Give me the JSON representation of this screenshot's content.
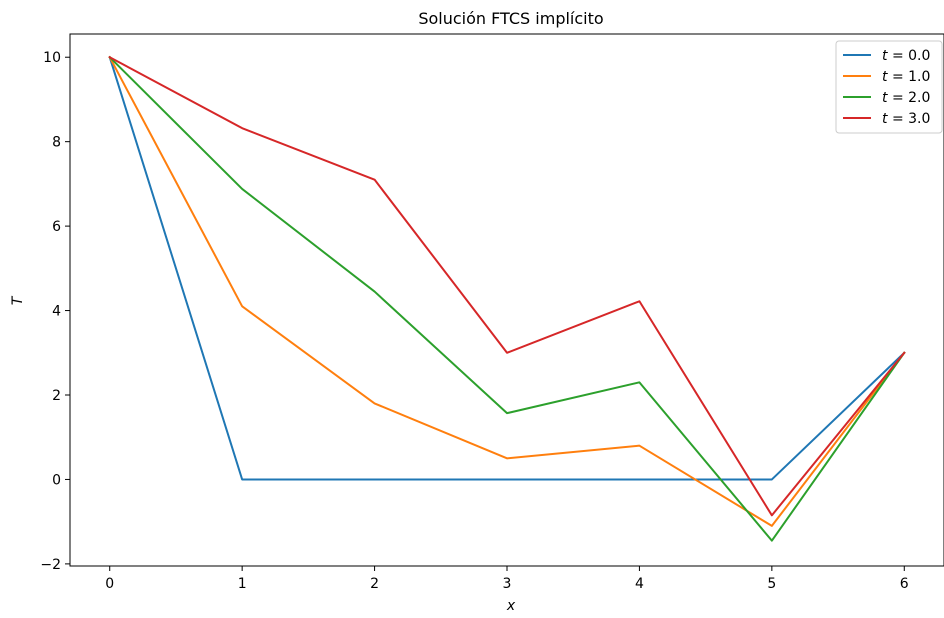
{
  "chart_data": {
    "type": "line",
    "title": "Solución FTCS implícito",
    "xlabel": "x",
    "ylabel": "T",
    "xlim": [
      -0.3,
      6.3
    ],
    "ylim": [
      -2.05,
      10.55
    ],
    "xticks": [
      0,
      1,
      2,
      3,
      4,
      5,
      6
    ],
    "yticks": [
      -2,
      0,
      2,
      4,
      6,
      8,
      10
    ],
    "xtick_labels": [
      "0",
      "1",
      "2",
      "3",
      "4",
      "5",
      "6"
    ],
    "ytick_labels": [
      "−2",
      "0",
      "2",
      "4",
      "6",
      "8",
      "10"
    ],
    "grid": false,
    "legend_position": "top-right",
    "x": [
      0,
      1,
      2,
      3,
      4,
      5,
      6
    ],
    "series": [
      {
        "name": "t = 0.0",
        "label_var": "t",
        "label_val": "= 0.0",
        "color": "#1f77b4",
        "values": [
          10,
          0,
          0,
          0,
          0,
          0,
          3
        ]
      },
      {
        "name": "t = 1.0",
        "label_var": "t",
        "label_val": "= 1.0",
        "color": "#ff7f0e",
        "values": [
          10,
          4.1,
          1.8,
          0.5,
          0.8,
          -1.1,
          3
        ]
      },
      {
        "name": "t = 2.0",
        "label_var": "t",
        "label_val": "= 2.0",
        "color": "#2ca02c",
        "values": [
          10,
          6.88,
          4.45,
          1.57,
          2.3,
          -1.45,
          3
        ]
      },
      {
        "name": "t = 3.0",
        "label_var": "t",
        "label_val": "= 3.0",
        "color": "#d62728",
        "values": [
          10,
          8.32,
          7.1,
          3.0,
          4.22,
          -0.85,
          3
        ]
      }
    ]
  }
}
